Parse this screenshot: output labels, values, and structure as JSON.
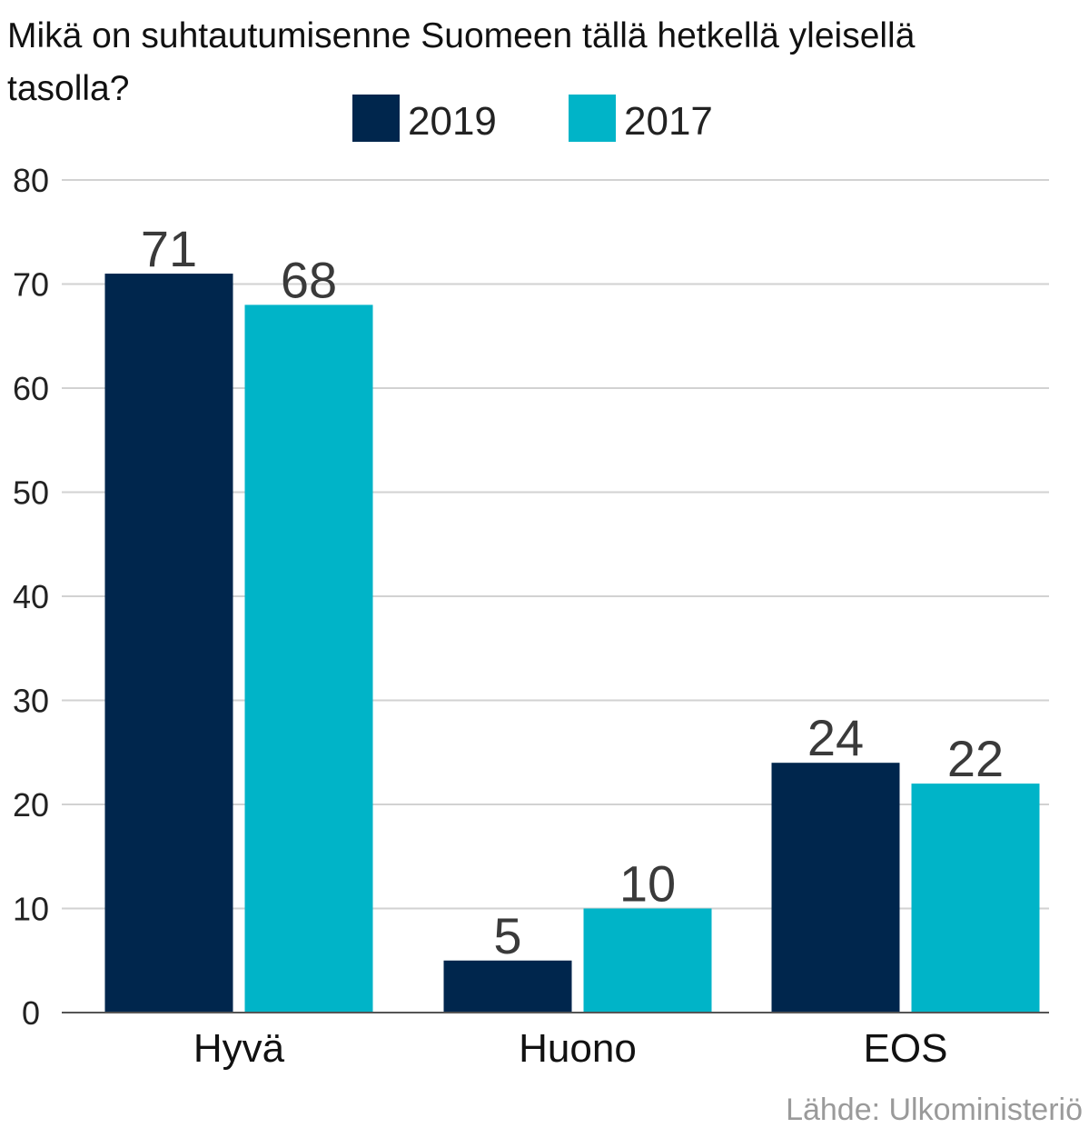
{
  "chart_data": {
    "type": "bar",
    "title_lines": [
      "Mikä on suhtautumisenne Suomeen tällä hetkellä yleisellä",
      "tasolla?"
    ],
    "categories": [
      "Hyvä",
      "Huono",
      "EOS"
    ],
    "series": [
      {
        "name": "2019",
        "color": "#00264d",
        "values": [
          71,
          5,
          24
        ]
      },
      {
        "name": "2017",
        "color": "#00b4c8",
        "values": [
          68,
          10,
          22
        ]
      }
    ],
    "ylim": [
      0,
      80
    ],
    "yticks": [
      0,
      10,
      20,
      30,
      40,
      50,
      60,
      70,
      80
    ],
    "grid": true,
    "legend": "top-center",
    "source": "Lähde: Ulkoministeriö"
  }
}
